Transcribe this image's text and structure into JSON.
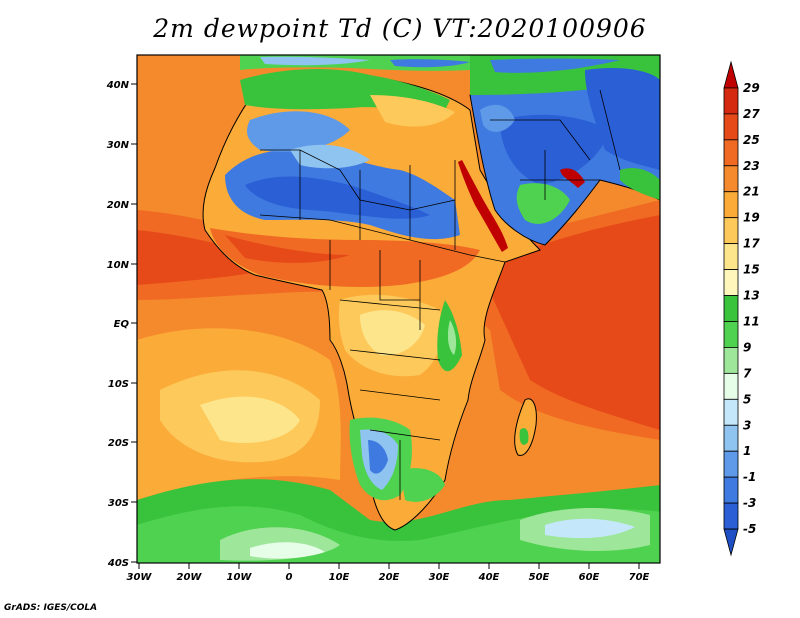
{
  "title": "2m dewpoint Td (C) VT:2020100906",
  "credit": "GrADS: IGES/COLA",
  "map": {
    "lat_ticks": [
      "40N",
      "30N",
      "20N",
      "10N",
      "EQ",
      "10S",
      "20S",
      "30S",
      "40S"
    ],
    "lon_ticks": [
      "30W",
      "20W",
      "10W",
      "0",
      "10E",
      "20E",
      "30E",
      "40E",
      "50E",
      "60E",
      "70E"
    ],
    "extent": {
      "lon_min": -30,
      "lon_max": 75,
      "lat_min": -40,
      "lat_max": 45
    }
  },
  "colorbar": {
    "labels": [
      "29",
      "27",
      "25",
      "23",
      "21",
      "19",
      "17",
      "15",
      "13",
      "11",
      "9",
      "7",
      "5",
      "3",
      "1",
      "-1",
      "-3",
      "-5"
    ],
    "colors": [
      "#c00000",
      "#d62a10",
      "#e64a18",
      "#f06a24",
      "#f58a2c",
      "#fbab38",
      "#fdc95a",
      "#fde58c",
      "#fff6bc",
      "#39c23c",
      "#4fd24f",
      "#9ee69a",
      "#e6fde8",
      "#c4e8fa",
      "#8fc4f1",
      "#5e9ae8",
      "#3f7ae0",
      "#2a5fd6",
      "#1f4fc4"
    ]
  }
}
